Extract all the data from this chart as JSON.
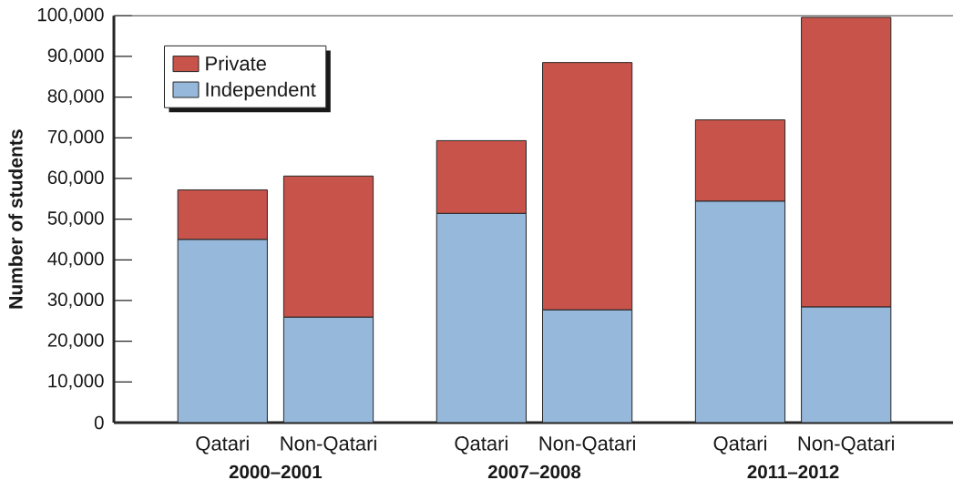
{
  "chart_data": {
    "type": "bar",
    "ylabel": "Number of students",
    "categories": [
      "Qatari",
      "Non-Qatari",
      "Qatari",
      "Non-Qatari",
      "Qatari",
      "Non-Qatari"
    ],
    "series": [
      {
        "name": "Independent",
        "color": "#95b8db",
        "values": [
          45000,
          25900,
          51400,
          27700,
          54400,
          28400
        ]
      },
      {
        "name": "Private",
        "color": "#c8534a",
        "values": [
          12200,
          34700,
          17900,
          60800,
          20000,
          71200
        ]
      }
    ],
    "stacked": true,
    "ylim": [
      0,
      100000
    ],
    "yticks": [
      0,
      {
        "value": 10000,
        "label": "10,000"
      },
      {
        "value": 20000,
        "label": "20,000"
      },
      {
        "value": 30000,
        "label": "30,000"
      },
      {
        "value": 40000,
        "label": "40,000"
      },
      {
        "value": 50000,
        "label": "50,000"
      },
      {
        "value": 60000,
        "label": "60,000"
      },
      {
        "value": 70000,
        "label": "70,000"
      },
      {
        "value": 80000,
        "label": "80,000"
      },
      {
        "value": 90000,
        "label": "90,000"
      },
      {
        "value": 100000,
        "label": "100,000"
      }
    ],
    "legend": "top left",
    "annotations": [
      "2000–2001",
      "2007–2008",
      "2011–2012"
    ]
  }
}
